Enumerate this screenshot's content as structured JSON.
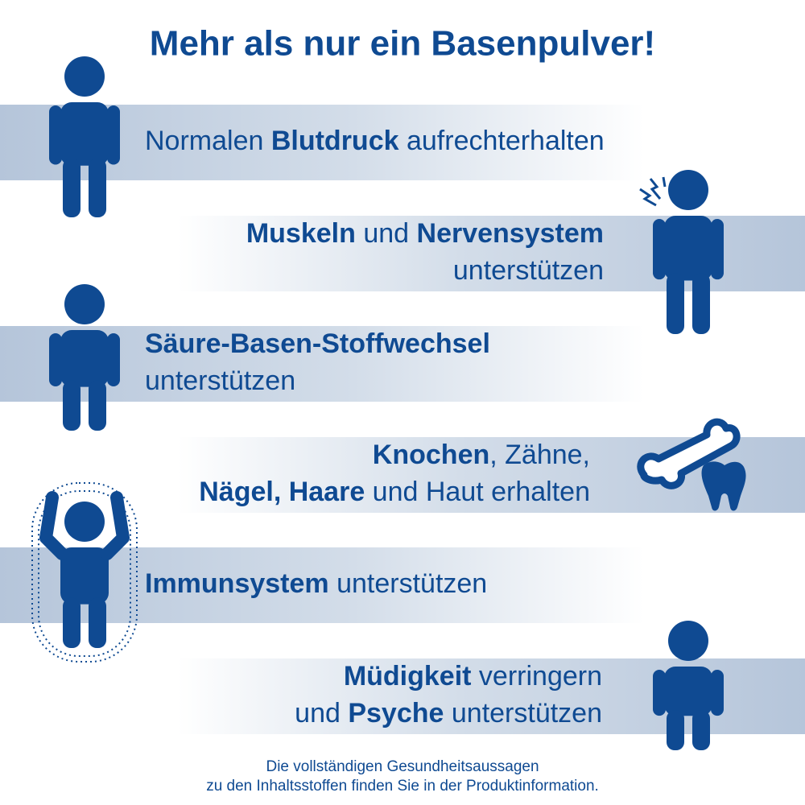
{
  "header": {
    "title": "Mehr als nur ein Basenpulver!"
  },
  "items": [
    {
      "lines": [
        [
          {
            "text": "Normalen ",
            "bold": false
          },
          {
            "text": "Blutdruck",
            "bold": true
          },
          {
            "text": " aufrechterhalten",
            "bold": false
          }
        ]
      ]
    },
    {
      "lines": [
        [
          {
            "text": "Muskeln",
            "bold": true
          },
          {
            "text": " und ",
            "bold": false
          },
          {
            "text": "Nervensystem",
            "bold": true
          }
        ],
        [
          {
            "text": "unterstützen",
            "bold": false
          }
        ]
      ]
    },
    {
      "lines": [
        [
          {
            "text": "Säure-Basen-Stoffwechsel",
            "bold": true
          }
        ],
        [
          {
            "text": "unterstützen",
            "bold": false
          }
        ]
      ]
    },
    {
      "lines": [
        [
          {
            "text": "Knochen",
            "bold": true
          },
          {
            "text": ", Zähne,",
            "bold": false
          }
        ],
        [
          {
            "text": "Nägel, Haare",
            "bold": true
          },
          {
            "text": " und Haut erhalten",
            "bold": false
          }
        ]
      ]
    },
    {
      "lines": [
        [
          {
            "text": "Immunsystem",
            "bold": true
          },
          {
            "text": " unterstützen",
            "bold": false
          }
        ]
      ]
    },
    {
      "lines": [
        [
          {
            "text": "Müdigkeit",
            "bold": true
          },
          {
            "text": " verringern",
            "bold": false
          }
        ],
        [
          {
            "text": "und ",
            "bold": false
          },
          {
            "text": "Psyche",
            "bold": true
          },
          {
            "text": " unterstützen",
            "bold": false
          }
        ]
      ]
    }
  ],
  "footer": {
    "lines": [
      "Die vollständigen Gesundheitsaussagen",
      "zu den Inhaltsstoffen finden Sie in der Produktinformation."
    ]
  }
}
